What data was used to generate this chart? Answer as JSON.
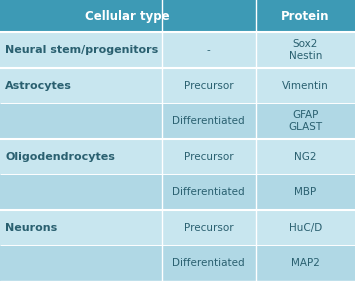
{
  "header_label_left": "Cellular type",
  "header_label_right": "Protein",
  "header_bg": "#3d9ab5",
  "header_text_color": "#ffffff",
  "header_font_size": 8.5,
  "cell_bg_light": "#c8e6ef",
  "cell_bg_medium": "#b0d8e5",
  "border_color": "#ffffff",
  "col_splits": [
    0.455,
    0.72
  ],
  "figsize": [
    3.55,
    2.81
  ],
  "dpi": 100,
  "body_font_size": 7.5,
  "col1_font_size": 8.0,
  "text_color": "#2a6070",
  "groups": [
    {
      "col1": "Neural stem/progenitors",
      "subrows": [
        {
          "col2": "-",
          "col3": "Sox2\nNestin"
        }
      ]
    },
    {
      "col1": "Astrocytes",
      "subrows": [
        {
          "col2": "Precursor",
          "col3": "Vimentin"
        },
        {
          "col2": "Differentiated",
          "col3": "GFAP\nGLAST"
        }
      ]
    },
    {
      "col1": "Oligodendrocytes",
      "subrows": [
        {
          "col2": "Precursor",
          "col3": "NG2"
        },
        {
          "col2": "Differentiated",
          "col3": "MBP"
        }
      ]
    },
    {
      "col1": "Neurons",
      "subrows": [
        {
          "col2": "Precursor",
          "col3": "HuC/D"
        },
        {
          "col2": "Differentiated",
          "col3": "MAP2"
        }
      ]
    }
  ]
}
